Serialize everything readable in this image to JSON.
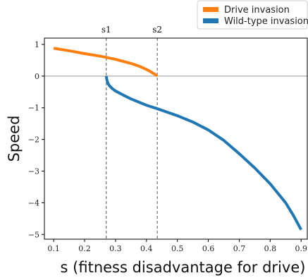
{
  "chart_data": {
    "type": "line",
    "xlabel": "s (fitness disadvantage for drive)",
    "ylabel": "Speed",
    "xlim": [
      0.07,
      0.92
    ],
    "ylim": [
      -5.15,
      1.2
    ],
    "xticks": [
      0.1,
      0.2,
      0.3,
      0.4,
      0.5,
      0.6,
      0.7,
      0.8,
      0.9
    ],
    "xtick_labels": [
      "0.1",
      "0.2",
      "0.3",
      "0.4",
      "0.5",
      "0.6",
      "0.7",
      "0.8",
      "0.9"
    ],
    "yticks": [
      1,
      0,
      -1,
      -2,
      -3,
      -4,
      -5
    ],
    "ytick_labels": [
      "1",
      "0",
      "−1",
      "−2",
      "−3",
      "−4",
      "−5"
    ],
    "grid": false,
    "legend_position": "top-right-outside",
    "zero_line": true,
    "reference_lines": [
      {
        "label": "s1",
        "x": 0.27
      },
      {
        "label": "s2",
        "x": 0.435
      }
    ],
    "series": [
      {
        "name": "Drive invasion",
        "color": "#ff7f0e",
        "x": [
          0.1,
          0.15,
          0.2,
          0.25,
          0.3,
          0.35,
          0.38,
          0.4,
          0.41,
          0.42,
          0.43,
          0.435
        ],
        "y": [
          0.88,
          0.8,
          0.71,
          0.63,
          0.53,
          0.4,
          0.3,
          0.21,
          0.16,
          0.1,
          0.04,
          0.0
        ]
      },
      {
        "name": "Wild-type invasion",
        "color": "#1f77b4",
        "x": [
          0.27,
          0.272,
          0.275,
          0.28,
          0.29,
          0.3,
          0.325,
          0.35,
          0.4,
          0.435,
          0.5,
          0.55,
          0.6,
          0.65,
          0.7,
          0.75,
          0.8,
          0.85,
          0.875,
          0.9
        ],
        "y": [
          0.0,
          -0.12,
          -0.22,
          -0.3,
          -0.4,
          -0.47,
          -0.6,
          -0.72,
          -0.92,
          -1.03,
          -1.25,
          -1.45,
          -1.7,
          -2.03,
          -2.45,
          -2.9,
          -3.4,
          -4.0,
          -4.4,
          -4.85
        ]
      }
    ]
  }
}
